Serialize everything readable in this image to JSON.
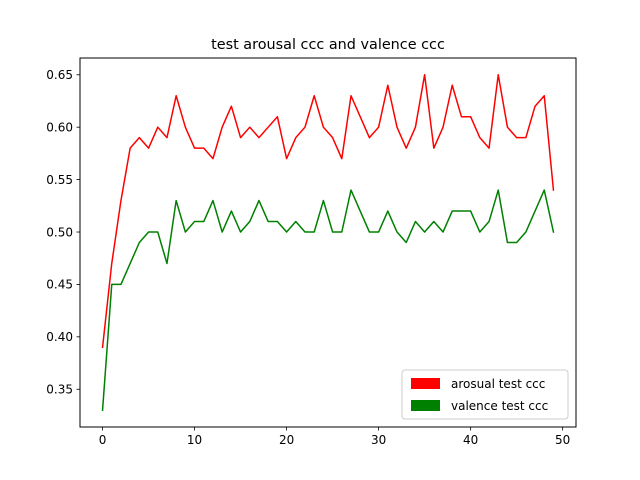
{
  "chart_data": {
    "type": "line",
    "title": "test arousal ccc and valence ccc",
    "xlabel": "",
    "ylabel": "",
    "xlim": [
      -2.45,
      51.45
    ],
    "ylim": [
      0.314,
      0.666
    ],
    "xticks": [
      0,
      10,
      20,
      30,
      40,
      50
    ],
    "yticks": [
      0.35,
      0.4,
      0.45,
      0.5,
      0.55,
      0.6,
      0.65
    ],
    "xtick_labels": [
      "0",
      "10",
      "20",
      "30",
      "40",
      "50"
    ],
    "ytick_labels": [
      "0.35",
      "0.40",
      "0.45",
      "0.50",
      "0.55",
      "0.60",
      "0.65"
    ],
    "grid": false,
    "legend_position": "lower-right",
    "x": [
      0,
      1,
      2,
      3,
      4,
      5,
      6,
      7,
      8,
      9,
      10,
      11,
      12,
      13,
      14,
      15,
      16,
      17,
      18,
      19,
      20,
      21,
      22,
      23,
      24,
      25,
      26,
      27,
      28,
      29,
      30,
      31,
      32,
      33,
      34,
      35,
      36,
      37,
      38,
      39,
      40,
      41,
      42,
      43,
      44,
      45,
      46,
      47,
      48,
      49
    ],
    "series": [
      {
        "name": "arosual test ccc",
        "color": "#ff0000",
        "values": [
          0.39,
          0.47,
          0.53,
          0.58,
          0.59,
          0.58,
          0.6,
          0.59,
          0.63,
          0.6,
          0.58,
          0.58,
          0.57,
          0.6,
          0.62,
          0.59,
          0.6,
          0.59,
          0.6,
          0.61,
          0.57,
          0.59,
          0.6,
          0.63,
          0.6,
          0.59,
          0.57,
          0.63,
          0.61,
          0.59,
          0.6,
          0.64,
          0.6,
          0.58,
          0.6,
          0.65,
          0.58,
          0.6,
          0.64,
          0.61,
          0.61,
          0.59,
          0.58,
          0.65,
          0.6,
          0.59,
          0.59,
          0.62,
          0.63,
          0.54
        ]
      },
      {
        "name": "valence test ccc",
        "color": "#008000",
        "values": [
          0.33,
          0.45,
          0.45,
          0.47,
          0.49,
          0.5,
          0.5,
          0.47,
          0.53,
          0.5,
          0.51,
          0.51,
          0.53,
          0.5,
          0.52,
          0.5,
          0.51,
          0.53,
          0.51,
          0.51,
          0.5,
          0.51,
          0.5,
          0.5,
          0.53,
          0.5,
          0.5,
          0.54,
          0.52,
          0.5,
          0.5,
          0.52,
          0.5,
          0.49,
          0.51,
          0.5,
          0.51,
          0.5,
          0.52,
          0.52,
          0.52,
          0.5,
          0.51,
          0.54,
          0.49,
          0.49,
          0.5,
          0.52,
          0.54,
          0.5
        ]
      }
    ]
  }
}
